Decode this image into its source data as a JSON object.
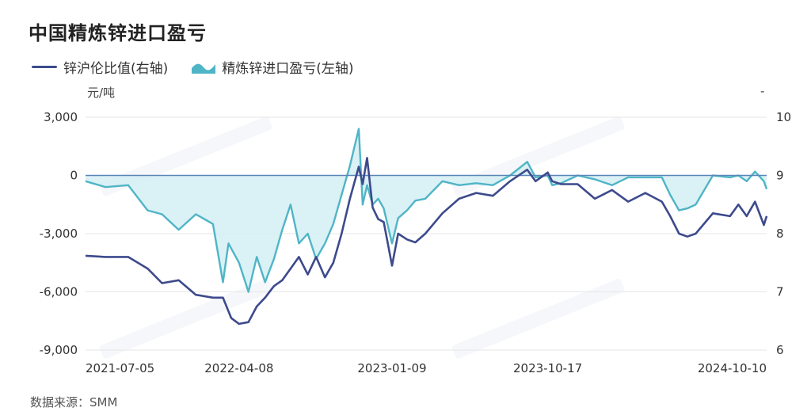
{
  "title": "中国精炼锌进口盈亏",
  "source": "数据来源：SMM",
  "chart_data": {
    "type": "line",
    "title": "中国精炼锌进口盈亏",
    "left_unit": "元/吨",
    "right_unit": "-",
    "legend_position": "top-left",
    "grid": true,
    "x_ticks": [
      "2021-07-05",
      "2022-04-08",
      "2023-01-09",
      "2023-10-17",
      "2024-10-10"
    ],
    "x_range": [
      "2021-07-05",
      "2024-11-15"
    ],
    "y_left": {
      "range": [
        -9000,
        3000
      ],
      "ticks": [
        "3,000",
        "0",
        "-3,000",
        "-6,000",
        "-9,000"
      ]
    },
    "y_right": {
      "range": [
        6,
        10
      ],
      "ticks": [
        "10",
        "9",
        "8",
        "7",
        "6"
      ]
    },
    "colors": {
      "ratio": "#3d4a8c",
      "profit": "#4fb5c6",
      "profit_fill": "#d4eef3",
      "zero_line": "#5a86b8"
    },
    "series": [
      {
        "name": "锌沪伦比值(右轴)",
        "axis": "right",
        "kind": "line",
        "x": [
          "2021-07-05",
          "2021-08-10",
          "2021-09-20",
          "2021-10-25",
          "2021-11-20",
          "2021-12-20",
          "2022-01-20",
          "2022-02-20",
          "2022-03-10",
          "2022-03-25",
          "2022-04-08",
          "2022-04-25",
          "2022-05-10",
          "2022-05-25",
          "2022-06-10",
          "2022-06-25",
          "2022-07-10",
          "2022-07-25",
          "2022-08-10",
          "2022-08-25",
          "2022-09-10",
          "2022-09-25",
          "2022-10-10",
          "2022-10-25",
          "2022-11-10",
          "2022-11-17",
          "2022-11-25",
          "2022-12-05",
          "2022-12-15",
          "2022-12-25",
          "2023-01-09",
          "2023-01-20",
          "2023-02-05",
          "2023-02-20",
          "2023-03-10",
          "2023-04-10",
          "2023-05-10",
          "2023-06-10",
          "2023-07-10",
          "2023-08-10",
          "2023-09-10",
          "2023-09-25",
          "2023-10-17",
          "2023-10-25",
          "2023-11-10",
          "2023-12-10",
          "2024-01-10",
          "2024-02-10",
          "2024-03-10",
          "2024-04-10",
          "2024-05-10",
          "2024-05-25",
          "2024-06-10",
          "2024-06-25",
          "2024-07-10",
          "2024-08-10",
          "2024-09-10",
          "2024-09-25",
          "2024-10-10",
          "2024-10-25",
          "2024-11-10",
          "2024-11-15"
        ],
        "values": [
          7.62,
          7.6,
          7.6,
          7.4,
          7.15,
          7.2,
          6.95,
          6.9,
          6.9,
          6.55,
          6.45,
          6.48,
          6.75,
          6.9,
          7.1,
          7.2,
          7.4,
          7.6,
          7.3,
          7.6,
          7.25,
          7.5,
          8.0,
          8.6,
          9.15,
          8.85,
          9.3,
          8.45,
          8.25,
          8.2,
          7.45,
          8.0,
          7.9,
          7.85,
          8.0,
          8.35,
          8.6,
          8.7,
          8.65,
          8.9,
          9.1,
          8.9,
          9.05,
          8.9,
          8.85,
          8.85,
          8.6,
          8.75,
          8.55,
          8.7,
          8.55,
          8.3,
          8.0,
          7.95,
          8.0,
          8.35,
          8.3,
          8.5,
          8.3,
          8.55,
          8.15,
          8.3
        ]
      },
      {
        "name": "精炼锌进口盈亏(左轴)",
        "axis": "left",
        "kind": "area",
        "x": [
          "2021-07-05",
          "2021-08-10",
          "2021-09-20",
          "2021-10-25",
          "2021-11-20",
          "2021-12-20",
          "2022-01-20",
          "2022-02-20",
          "2022-03-10",
          "2022-03-20",
          "2022-04-08",
          "2022-04-25",
          "2022-05-10",
          "2022-05-25",
          "2022-06-10",
          "2022-06-25",
          "2022-07-10",
          "2022-07-25",
          "2022-08-10",
          "2022-08-25",
          "2022-09-10",
          "2022-09-25",
          "2022-10-10",
          "2022-10-25",
          "2022-11-10",
          "2022-11-17",
          "2022-11-25",
          "2022-12-05",
          "2022-12-15",
          "2022-12-25",
          "2023-01-09",
          "2023-01-20",
          "2023-02-05",
          "2023-02-20",
          "2023-03-10",
          "2023-04-10",
          "2023-05-10",
          "2023-06-10",
          "2023-07-10",
          "2023-08-10",
          "2023-09-10",
          "2023-09-25",
          "2023-10-17",
          "2023-10-25",
          "2023-11-10",
          "2023-12-10",
          "2024-01-10",
          "2024-02-10",
          "2024-03-10",
          "2024-04-10",
          "2024-05-10",
          "2024-05-25",
          "2024-06-10",
          "2024-06-25",
          "2024-07-10",
          "2024-08-10",
          "2024-09-10",
          "2024-09-25",
          "2024-10-10",
          "2024-10-25",
          "2024-11-10",
          "2024-11-15"
        ],
        "values": [
          -300,
          -600,
          -500,
          -1800,
          -2000,
          -2800,
          -2000,
          -2500,
          -5500,
          -3500,
          -4500,
          -6000,
          -4200,
          -5500,
          -4300,
          -2800,
          -1500,
          -3500,
          -3000,
          -4300,
          -3500,
          -2500,
          -1000,
          500,
          2400,
          -1500,
          -500,
          -1500,
          -1200,
          -1700,
          -3500,
          -2200,
          -1800,
          -1300,
          -1200,
          -300,
          -500,
          -400,
          -500,
          0,
          700,
          -100,
          0,
          -500,
          -400,
          0,
          -200,
          -500,
          -100,
          -100,
          -100,
          -1000,
          -1800,
          -1700,
          -1500,
          0,
          -100,
          0,
          -300,
          200,
          -300,
          -700
        ]
      }
    ]
  }
}
